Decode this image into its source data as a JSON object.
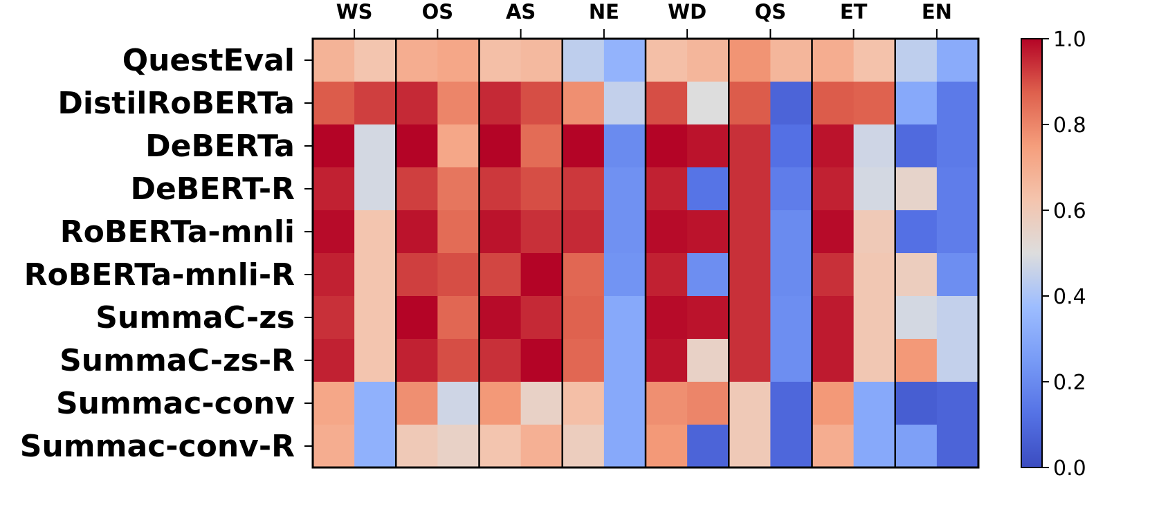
{
  "chart_data": {
    "type": "heatmap",
    "title": "",
    "xlabel": "",
    "ylabel": "",
    "x_position": "top",
    "colormap": "coolwarm",
    "colorbar": {
      "range": [
        0.0,
        1.0
      ],
      "ticks": [
        "0.0",
        "0.2",
        "0.4",
        "0.6",
        "0.8",
        "1.0"
      ],
      "position": "right"
    },
    "column_groups": [
      "WS",
      "OS",
      "AS",
      "NE",
      "WD",
      "QS",
      "ET",
      "EN"
    ],
    "subcolumns_per_group": 2,
    "rows": [
      "QuestEval",
      "DistilRoBERTa",
      "DeBERTa",
      "DeBERT-R",
      "RoBERTa-mnli",
      "RoBERTa-mnli-R",
      "SummaC-zs",
      "SummaC-zs-R",
      "Summac-conv",
      "Summac-conv-R"
    ],
    "values": [
      [
        0.68,
        0.62,
        0.7,
        0.72,
        0.64,
        0.66,
        0.44,
        0.34,
        0.64,
        0.67,
        0.77,
        0.67,
        0.7,
        0.63,
        0.44,
        0.31
      ],
      [
        0.88,
        0.92,
        0.95,
        0.8,
        0.95,
        0.9,
        0.78,
        0.45,
        0.9,
        0.5,
        0.88,
        0.08,
        0.88,
        0.87,
        0.3,
        0.15
      ],
      [
        1.0,
        0.48,
        1.0,
        0.72,
        1.0,
        0.85,
        1.0,
        0.2,
        1.0,
        0.98,
        0.94,
        0.12,
        0.98,
        0.47,
        0.1,
        0.15
      ],
      [
        0.96,
        0.48,
        0.92,
        0.83,
        0.93,
        0.9,
        0.93,
        0.22,
        0.96,
        0.13,
        0.94,
        0.16,
        0.96,
        0.48,
        0.55,
        0.16
      ],
      [
        0.99,
        0.62,
        0.98,
        0.85,
        0.98,
        0.94,
        0.95,
        0.22,
        0.99,
        0.98,
        0.94,
        0.2,
        0.99,
        0.6,
        0.12,
        0.16
      ],
      [
        0.96,
        0.62,
        0.92,
        0.9,
        0.91,
        1.0,
        0.86,
        0.23,
        0.96,
        0.21,
        0.94,
        0.2,
        0.94,
        0.61,
        0.58,
        0.21
      ],
      [
        0.94,
        0.62,
        1.0,
        0.86,
        0.99,
        0.95,
        0.87,
        0.3,
        0.99,
        0.98,
        0.94,
        0.21,
        0.97,
        0.61,
        0.48,
        0.45
      ],
      [
        0.96,
        0.62,
        0.96,
        0.9,
        0.94,
        1.0,
        0.86,
        0.3,
        0.98,
        0.56,
        0.94,
        0.21,
        0.97,
        0.61,
        0.76,
        0.45
      ],
      [
        0.72,
        0.33,
        0.78,
        0.47,
        0.76,
        0.56,
        0.64,
        0.3,
        0.78,
        0.8,
        0.6,
        0.09,
        0.76,
        0.3,
        0.06,
        0.08
      ],
      [
        0.7,
        0.33,
        0.6,
        0.56,
        0.62,
        0.69,
        0.58,
        0.3,
        0.76,
        0.08,
        0.6,
        0.09,
        0.7,
        0.3,
        0.27,
        0.08
      ]
    ]
  }
}
